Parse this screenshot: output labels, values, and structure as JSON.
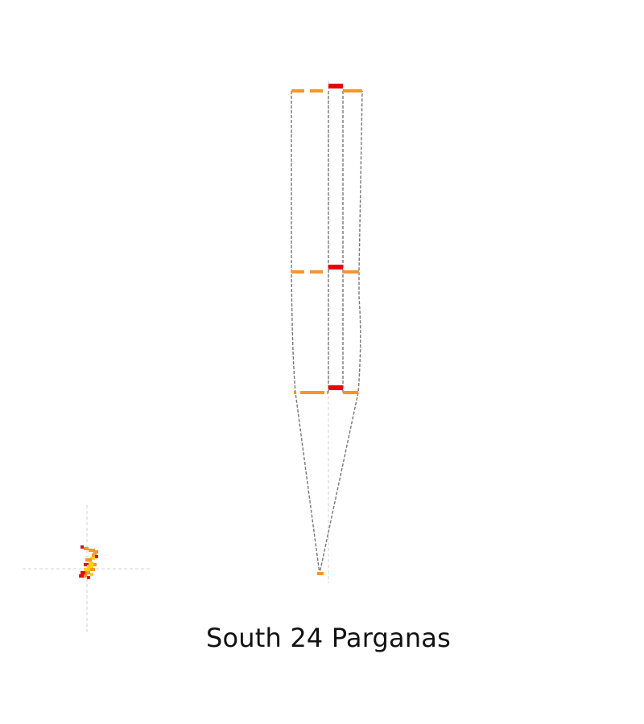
{
  "map": {
    "title": "South 24 Parganas"
  },
  "colors": {
    "background": "#ffffff",
    "outline": "#777777",
    "guide": "#cccccc",
    "orange": "#f7952b",
    "red": "#e8000b",
    "yellow": "#ffd20a",
    "title": "#111111"
  }
}
